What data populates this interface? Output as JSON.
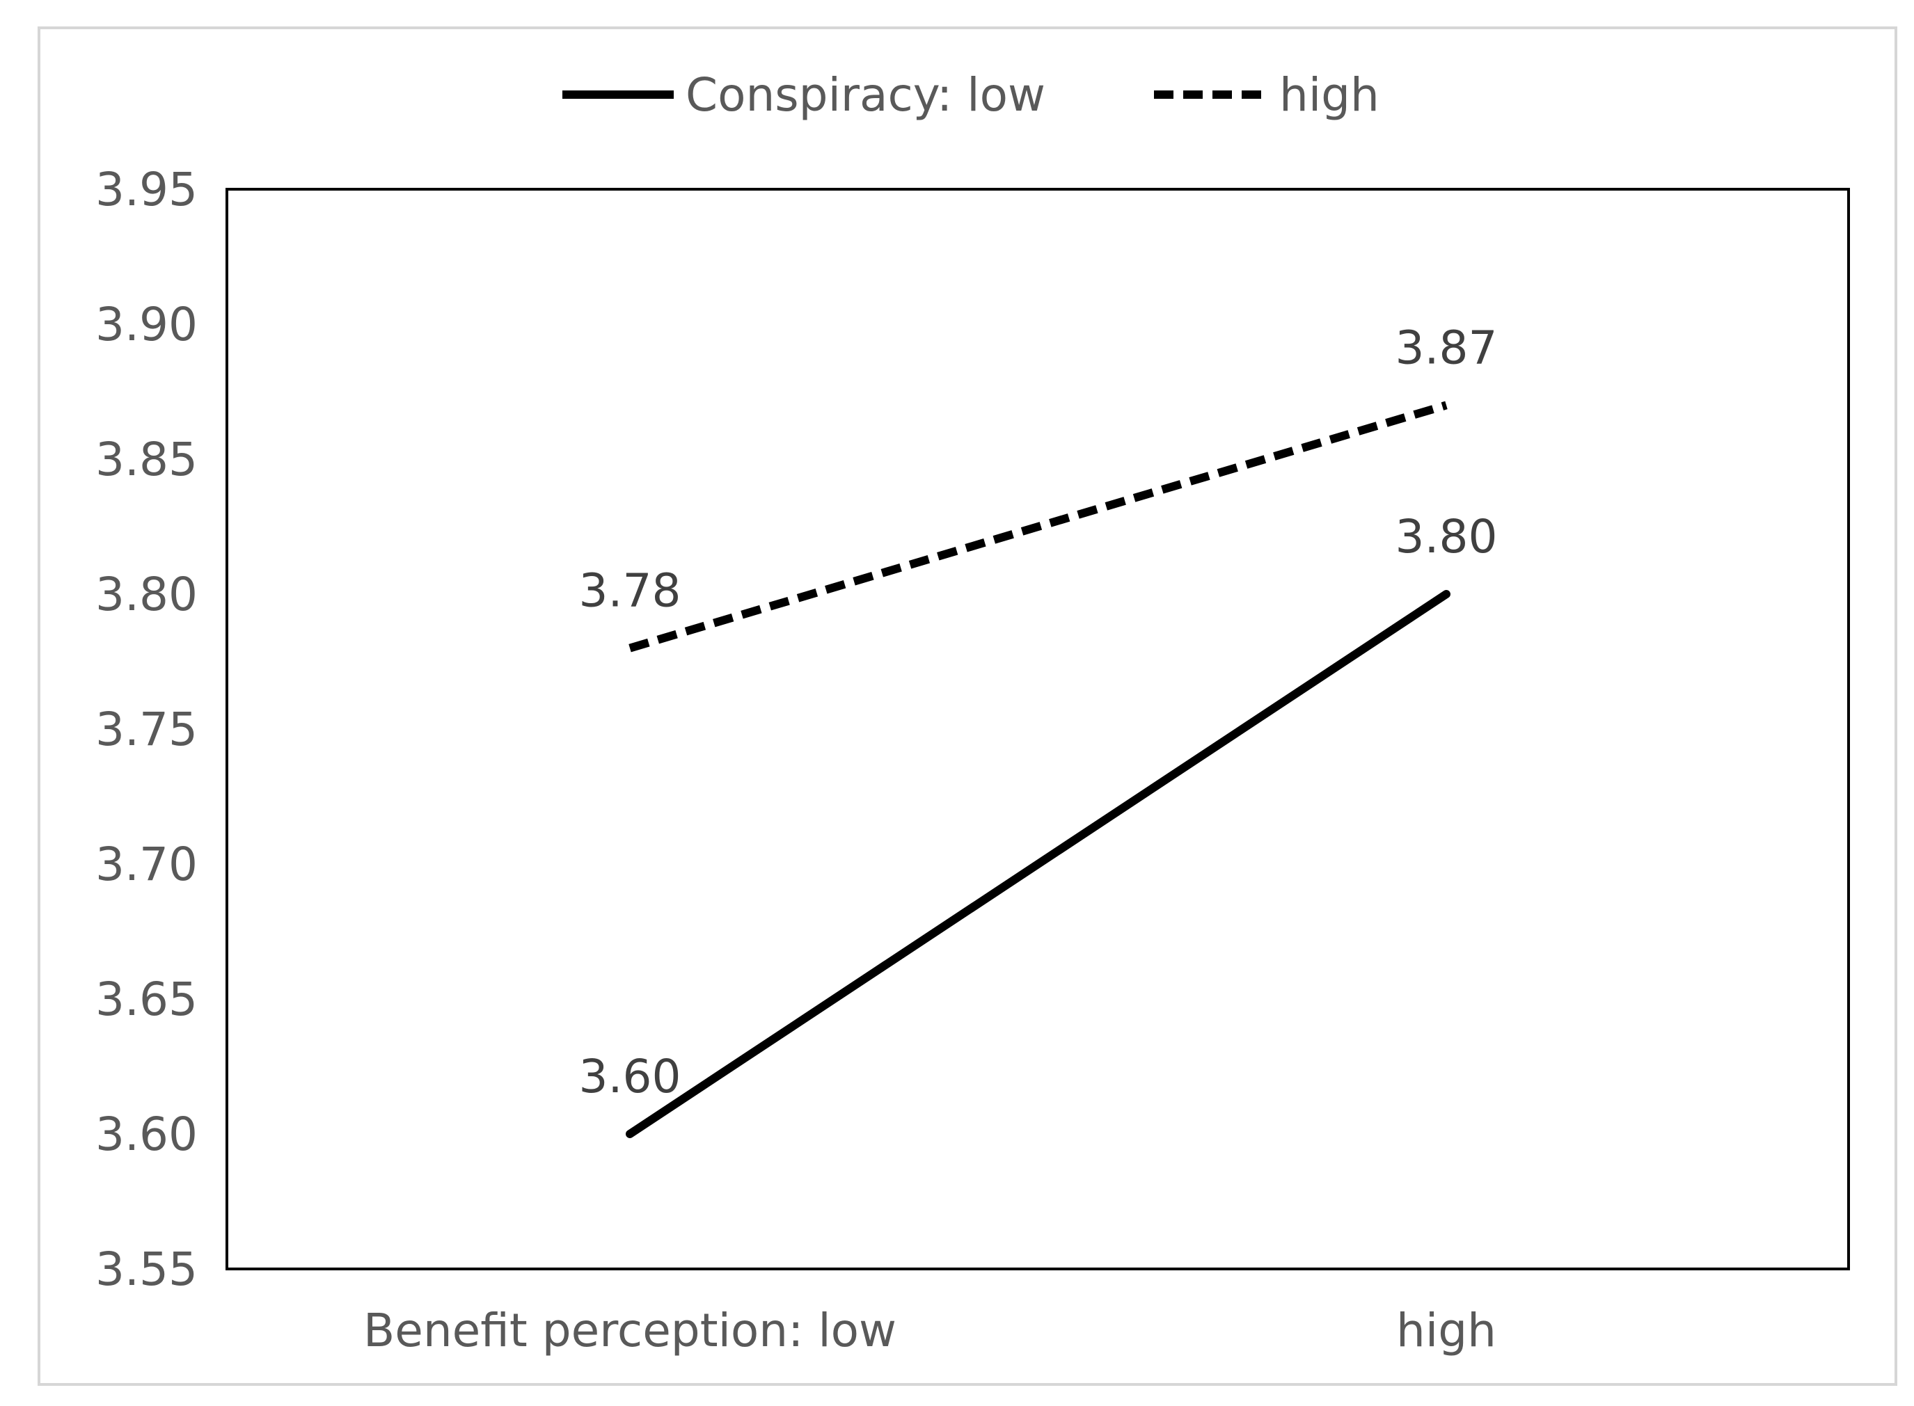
{
  "chart_data": {
    "type": "line",
    "title": "",
    "xlabel": "",
    "ylabel": "",
    "categories": [
      "Benefit perception: low",
      "high"
    ],
    "ylim": [
      3.55,
      3.95
    ],
    "yticks": [
      "3.55",
      "3.60",
      "3.65",
      "3.70",
      "3.75",
      "3.80",
      "3.85",
      "3.90",
      "3.95"
    ],
    "grid": false,
    "legend_position": "top-center",
    "series": [
      {
        "name": "Conspiracy: low",
        "line_style": "solid",
        "color": "#000000",
        "values": [
          3.6,
          3.8
        ],
        "labels": [
          "3.60",
          "3.80"
        ]
      },
      {
        "name": "high",
        "line_style": "dashed",
        "color": "#000000",
        "values": [
          3.78,
          3.87
        ],
        "labels": [
          "3.78",
          "3.87"
        ]
      }
    ]
  }
}
